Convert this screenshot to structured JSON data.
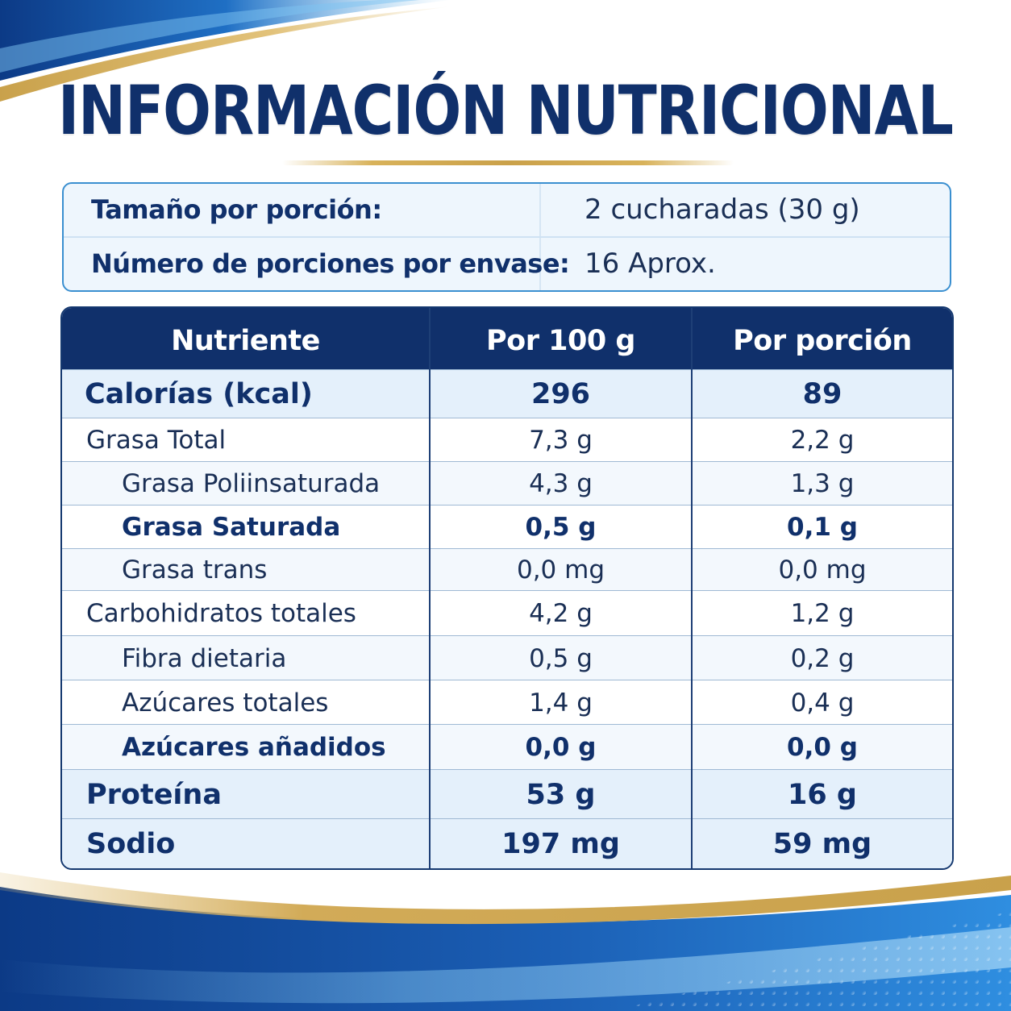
{
  "title": "INFORMACIÓN NUTRICIONAL",
  "serving": {
    "size_label": "Tamaño por porción:",
    "size_value": "2 cucharadas (30 g)",
    "count_label": "Número de porciones por envase:",
    "count_value": "16 Aprox."
  },
  "table": {
    "headers": [
      "Nutriente",
      "Por 100 g",
      "Por porción"
    ],
    "rows": [
      {
        "name": "Calorías (kcal)",
        "per100": "296",
        "per_portion": "89"
      },
      {
        "name": "Grasa Total",
        "per100": "7,3 g",
        "per_portion": "2,2 g"
      },
      {
        "name": "Grasa Poliinsaturada",
        "per100": "4,3 g",
        "per_portion": "1,3 g"
      },
      {
        "name": "Grasa Saturada",
        "per100": "0,5 g",
        "per_portion": "0,1 g"
      },
      {
        "name": "Grasa trans",
        "per100": "0,0 mg",
        "per_portion": "0,0 mg"
      },
      {
        "name": "Carbohidratos totales",
        "per100": "4,2 g",
        "per_portion": "1,2 g"
      },
      {
        "name": "Fibra dietaria",
        "per100": "0,5 g",
        "per_portion": "0,2 g"
      },
      {
        "name": "Azúcares totales",
        "per100": "1,4 g",
        "per_portion": "0,4 g"
      },
      {
        "name": "Azúcares añadidos",
        "per100": "0,0 g",
        "per_portion": "0,0 g"
      },
      {
        "name": "Proteína",
        "per100": "53 g",
        "per_portion": "16 g"
      },
      {
        "name": "Sodio",
        "per100": "197 mg",
        "per_portion": "59 mg"
      }
    ]
  },
  "colors": {
    "navy": "#10306b",
    "accent_blue": "#3a8fd0",
    "gold": "#caa14a",
    "row_shade": "#e4f0fb"
  }
}
